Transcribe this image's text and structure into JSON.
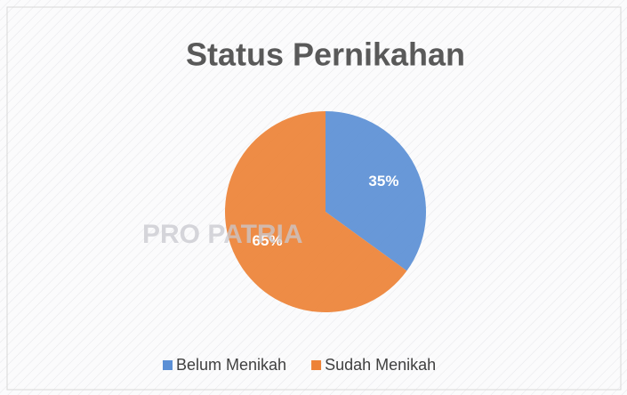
{
  "watermark": "PRO PATRIA",
  "chart_data": {
    "type": "pie",
    "title": "Status Pernikahan",
    "categories": [
      "Belum Menikah",
      "Sudah Menikah"
    ],
    "values": [
      35,
      65
    ],
    "value_labels": [
      "35%",
      "65%"
    ],
    "colors": [
      "#5b8fd5",
      "#ed8236"
    ],
    "legend": "bottom"
  }
}
